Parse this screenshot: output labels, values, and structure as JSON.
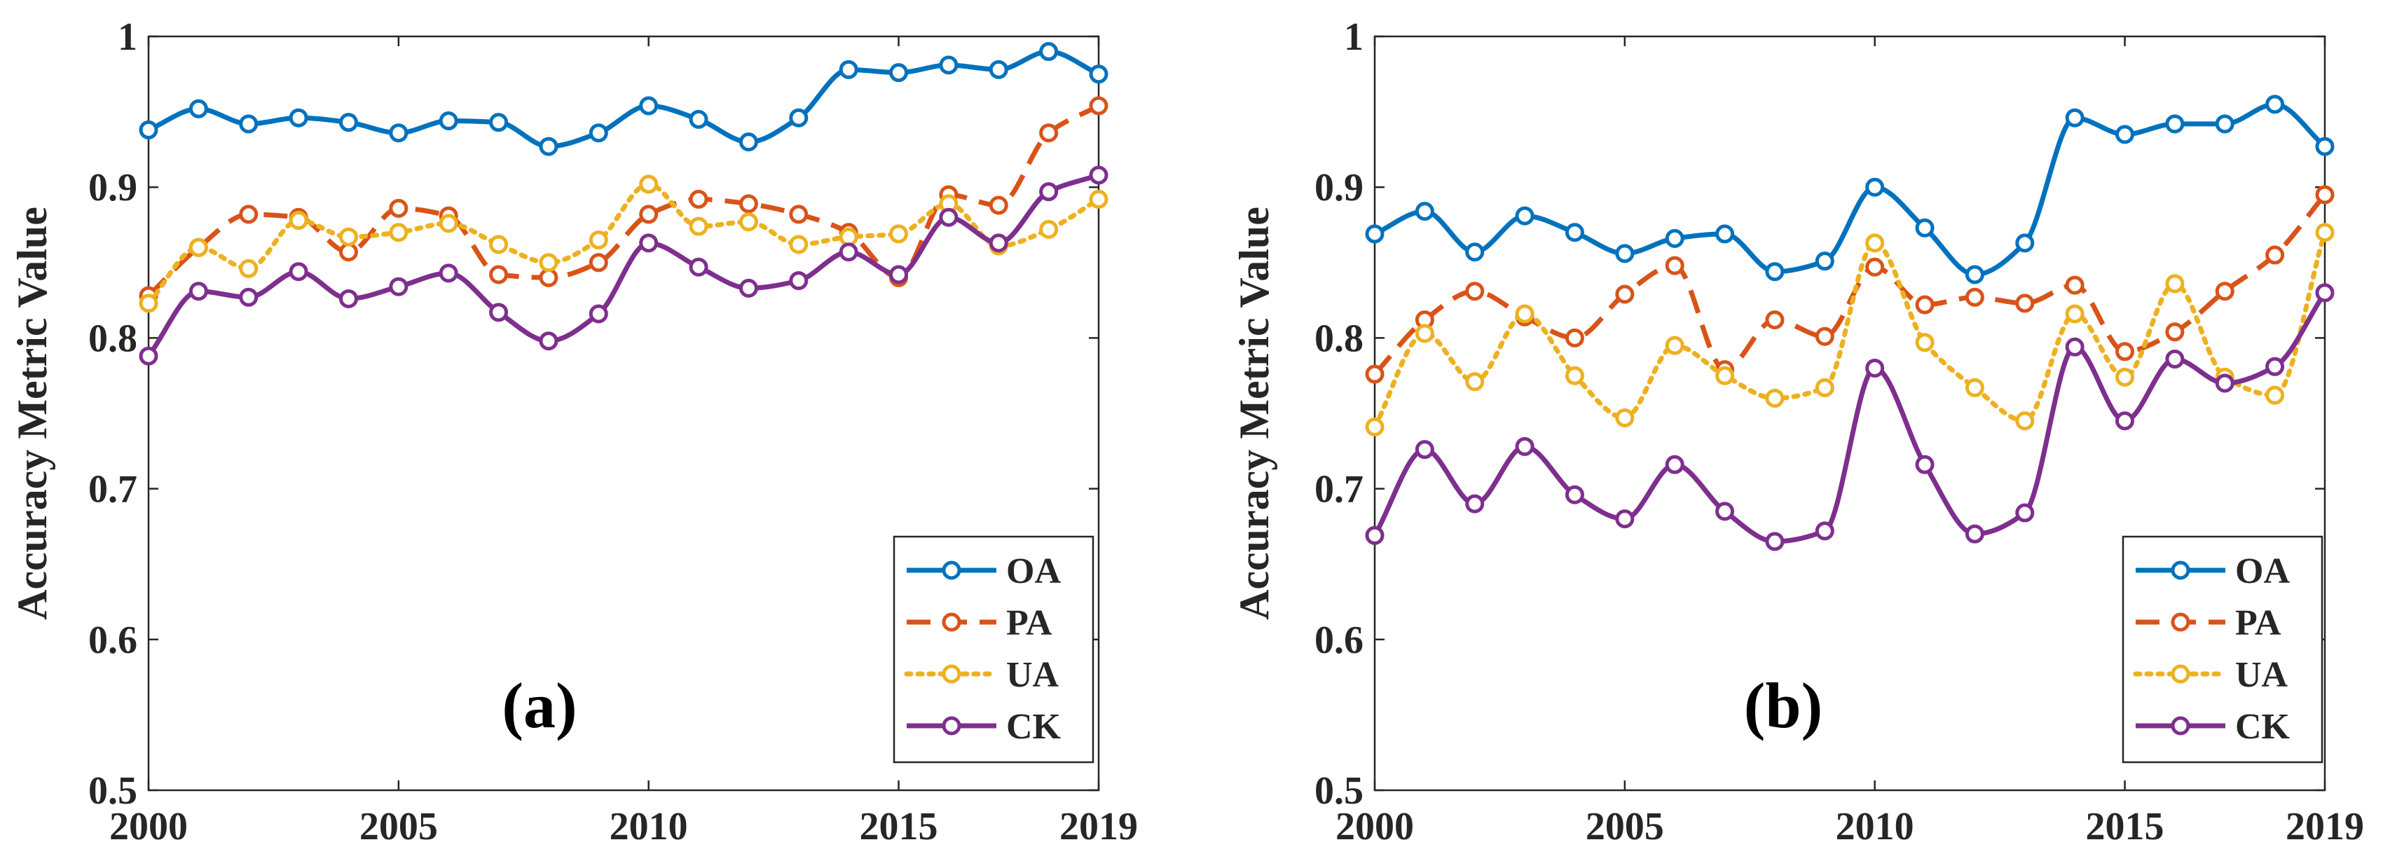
{
  "chart_data": [
    {
      "type": "line",
      "panel_label": "(a)",
      "ylabel": "Accuracy Metric Value",
      "xlabel": "",
      "xlim": [
        2000,
        2019
      ],
      "ylim": [
        0.5,
        1
      ],
      "xticks": [
        2000,
        2005,
        2010,
        2015,
        2019
      ],
      "yticks": [
        0.5,
        0.6,
        0.7,
        0.8,
        0.9,
        1
      ],
      "ytick_labels": [
        "0.5",
        "0.6",
        "0.7",
        "0.8",
        "0.9",
        "1"
      ],
      "grid": false,
      "legend_position": "bottom-right",
      "x": [
        2000,
        2001,
        2002,
        2003,
        2004,
        2005,
        2006,
        2007,
        2008,
        2009,
        2010,
        2011,
        2012,
        2013,
        2014,
        2015,
        2016,
        2017,
        2018,
        2019
      ],
      "series": [
        {
          "name": "OA",
          "color": "#0072BD",
          "style": "solid",
          "values": [
            0.938,
            0.952,
            0.942,
            0.946,
            0.943,
            0.936,
            0.944,
            0.943,
            0.927,
            0.936,
            0.954,
            0.945,
            0.93,
            0.946,
            0.978,
            0.976,
            0.981,
            0.978,
            0.99,
            0.975
          ]
        },
        {
          "name": "PA",
          "color": "#D95319",
          "style": "dashed",
          "values": [
            0.828,
            0.86,
            0.882,
            0.88,
            0.857,
            0.886,
            0.881,
            0.842,
            0.84,
            0.85,
            0.882,
            0.892,
            0.889,
            0.882,
            0.87,
            0.84,
            0.895,
            0.888,
            0.936,
            0.954
          ]
        },
        {
          "name": "UA",
          "color": "#EDB120",
          "style": "dotted",
          "values": [
            0.823,
            0.86,
            0.846,
            0.878,
            0.867,
            0.87,
            0.876,
            0.862,
            0.85,
            0.865,
            0.902,
            0.874,
            0.877,
            0.862,
            0.867,
            0.869,
            0.889,
            0.861,
            0.872,
            0.892
          ]
        },
        {
          "name": "CK",
          "color": "#7E2F8E",
          "style": "solid",
          "values": [
            0.788,
            0.831,
            0.827,
            0.844,
            0.826,
            0.834,
            0.843,
            0.817,
            0.798,
            0.816,
            0.863,
            0.847,
            0.833,
            0.838,
            0.857,
            0.842,
            0.88,
            0.863,
            0.897,
            0.908
          ]
        }
      ]
    },
    {
      "type": "line",
      "panel_label": "(b)",
      "ylabel": "Accuracy Metric Value",
      "xlabel": "",
      "xlim": [
        2000,
        2019
      ],
      "ylim": [
        0.5,
        1
      ],
      "xticks": [
        2000,
        2005,
        2010,
        2015,
        2019
      ],
      "yticks": [
        0.5,
        0.6,
        0.7,
        0.8,
        0.9,
        1
      ],
      "ytick_labels": [
        "0.5",
        "0.6",
        "0.7",
        "0.8",
        "0.9",
        "1"
      ],
      "grid": false,
      "legend_position": "bottom-right",
      "x": [
        2000,
        2001,
        2002,
        2003,
        2004,
        2005,
        2006,
        2007,
        2008,
        2009,
        2010,
        2011,
        2012,
        2013,
        2014,
        2015,
        2016,
        2017,
        2018,
        2019
      ],
      "series": [
        {
          "name": "OA",
          "color": "#0072BD",
          "style": "solid",
          "values": [
            0.869,
            0.884,
            0.857,
            0.881,
            0.87,
            0.856,
            0.866,
            0.869,
            0.844,
            0.851,
            0.9,
            0.873,
            0.842,
            0.863,
            0.946,
            0.935,
            0.942,
            0.942,
            0.955,
            0.927
          ]
        },
        {
          "name": "PA",
          "color": "#D95319",
          "style": "dashed",
          "values": [
            0.776,
            0.812,
            0.831,
            0.814,
            0.8,
            0.829,
            0.848,
            0.779,
            0.812,
            0.801,
            0.847,
            0.822,
            0.827,
            0.823,
            0.835,
            0.791,
            0.804,
            0.831,
            0.855,
            0.895
          ]
        },
        {
          "name": "UA",
          "color": "#EDB120",
          "style": "dotted",
          "values": [
            0.741,
            0.803,
            0.771,
            0.816,
            0.775,
            0.747,
            0.795,
            0.775,
            0.76,
            0.767,
            0.863,
            0.797,
            0.767,
            0.745,
            0.816,
            0.774,
            0.836,
            0.774,
            0.762,
            0.87
          ]
        },
        {
          "name": "CK",
          "color": "#7E2F8E",
          "style": "solid",
          "values": [
            0.669,
            0.726,
            0.69,
            0.728,
            0.696,
            0.68,
            0.716,
            0.685,
            0.665,
            0.672,
            0.78,
            0.716,
            0.67,
            0.684,
            0.794,
            0.745,
            0.786,
            0.77,
            0.781,
            0.83
          ]
        }
      ]
    }
  ]
}
